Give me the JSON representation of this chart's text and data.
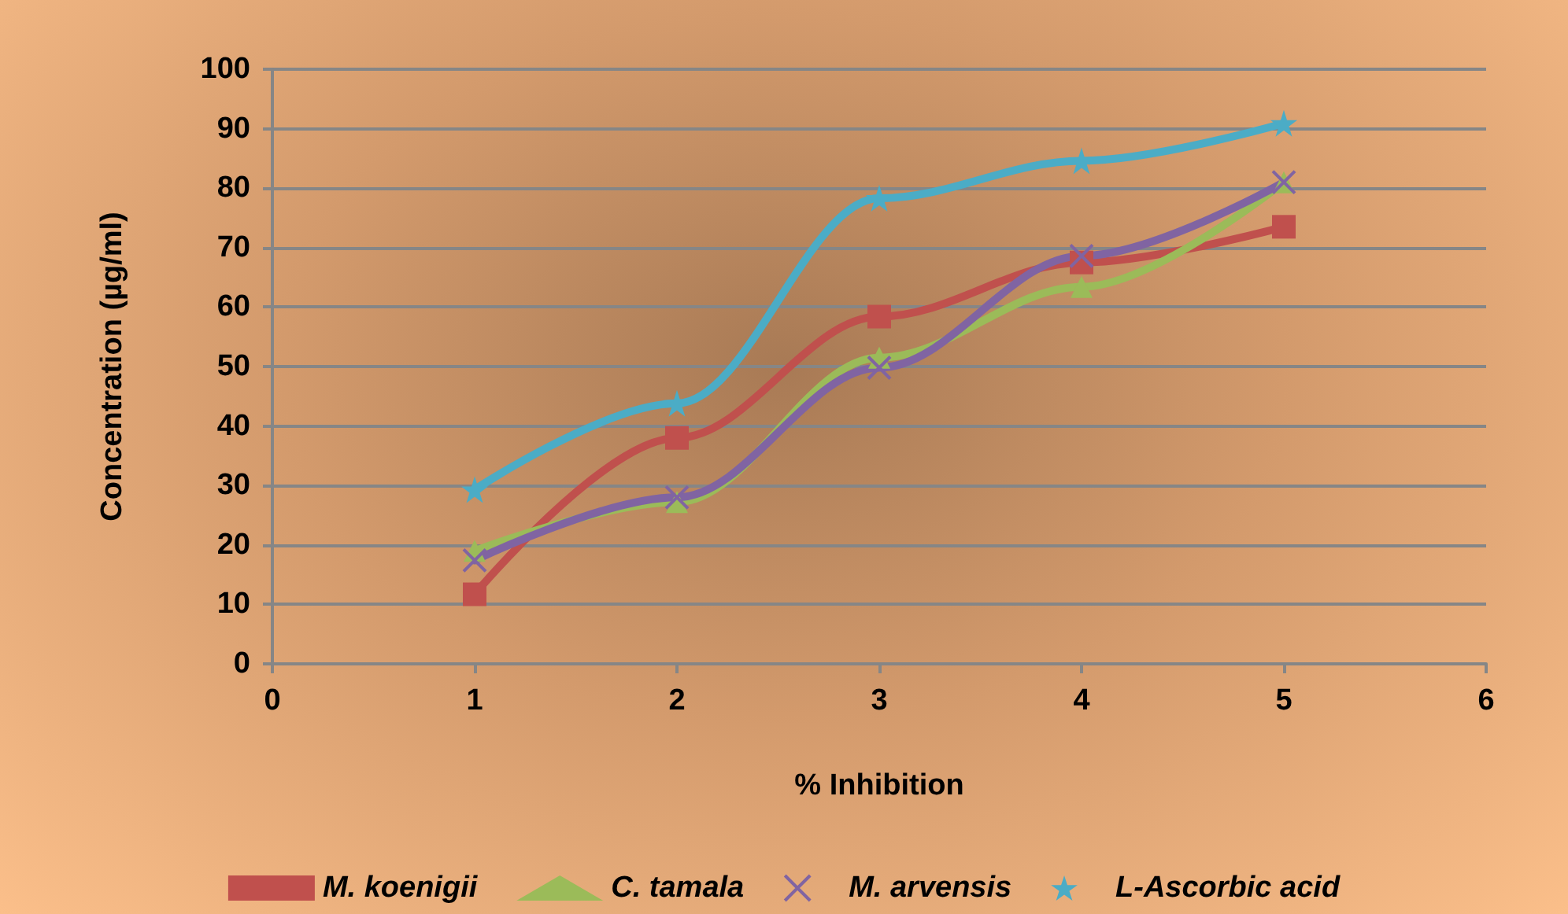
{
  "chart_data": {
    "type": "line",
    "xlabel": "% Inhibition",
    "ylabel": "Concentration (µg/ml)",
    "x": [
      1,
      2,
      3,
      4,
      5
    ],
    "xlim": [
      0,
      6
    ],
    "xticks": [
      0,
      1,
      2,
      3,
      4,
      5,
      6
    ],
    "ylim": [
      0,
      100
    ],
    "yticks": [
      0,
      10,
      20,
      30,
      40,
      50,
      60,
      70,
      80,
      90,
      100
    ],
    "grid": "y",
    "legend": "bottom",
    "line_style": "solid",
    "series": [
      {
        "name": "M. koenigii",
        "color": "#c0504d",
        "marker": "square",
        "values": [
          11.7,
          38,
          58.4,
          67.5,
          73.5
        ]
      },
      {
        "name": "C. tamala",
        "color": "#9bbb59",
        "marker": "triangle",
        "values": [
          19,
          27.2,
          51.5,
          63.4,
          81
        ]
      },
      {
        "name": "M. arvensis",
        "color": "#8064a2",
        "marker": "cross",
        "values": [
          17.4,
          28,
          49.8,
          68.6,
          81
        ]
      },
      {
        "name": "L-Ascorbic acid",
        "color": "#4bacc6",
        "marker": "star",
        "values": [
          29.3,
          43.8,
          78.3,
          84.6,
          90.9
        ]
      }
    ]
  }
}
